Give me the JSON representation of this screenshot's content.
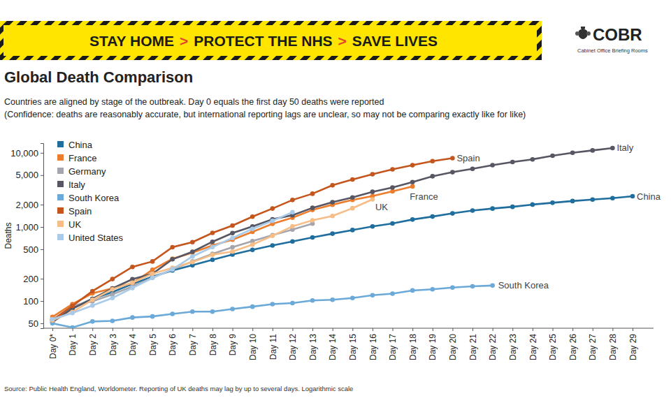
{
  "banner": {
    "items": [
      "STAY HOME",
      "PROTECT THE NHS",
      "SAVE LIVES"
    ],
    "separator": ">"
  },
  "logo": {
    "title": "COBR",
    "subtitle": "Cabinet Office Briefing Rooms"
  },
  "chart_data": {
    "type": "line",
    "title": "Global Death Comparison",
    "subtitle": [
      "Countries are aligned by stage of the outbreak. Day 0 equals the first day 50 deaths were reported",
      "(Confidence: deaths are reasonably accurate, but international reporting lags are unclear, so may not be comparing exactly like for like)"
    ],
    "source": "Source: Public Health England, Worldometer. Reporting of UK deaths may lag by up to several days. Logarithmic scale",
    "y_label": "Deaths",
    "log": "y",
    "grid": false,
    "legend": "top-left",
    "marker": "circle",
    "categories": [
      "Day 0*",
      "Day 1",
      "Day 2",
      "Day 3",
      "Day 4",
      "Day 5",
      "Day 6",
      "Day 7",
      "Day 8",
      "Day 9",
      "Day 10",
      "Day 11",
      "Day 12",
      "Day 13",
      "Day 14",
      "Day 15",
      "Day 16",
      "Day 17",
      "Day 18",
      "Day 19",
      "Day 20",
      "Day 21",
      "Day 22",
      "Day 23",
      "Day 24",
      "Day 25",
      "Day 26",
      "Day 27",
      "Day 28",
      "Day 29"
    ],
    "ylim": [
      43,
      13500
    ],
    "yticks": [
      50,
      100,
      200,
      500,
      {
        "value": 1000,
        "label": "1,000"
      },
      {
        "value": 2000,
        "label": "2,000"
      },
      {
        "value": 5000,
        "label": "5,000"
      },
      {
        "value": 10000,
        "label": "10,000"
      }
    ],
    "series": [
      {
        "name": "China",
        "color": "#1f6e9e",
        "values": [
          56,
          81,
          107,
          132,
          170,
          213,
          259,
          304,
          361,
          425,
          490,
          563,
          637,
          722,
          811,
          908,
          1016,
          1113,
          1259,
          1380,
          1523,
          1665,
          1770,
          1868,
          2004,
          2118,
          2236,
          2345,
          2442,
          2592
        ]
      },
      {
        "name": "France",
        "color": "#ec7d2d",
        "values": [
          61,
          91,
          127,
          148,
          175,
          264,
          372,
          450,
          562,
          674,
          860,
          1100,
          1331,
          1696,
          1995,
          2314,
          2606,
          3024,
          3523,
          null,
          null,
          null,
          null,
          null,
          null,
          null,
          null,
          null,
          null,
          null
        ]
      },
      {
        "name": "Germany",
        "color": "#a5a5ad",
        "values": [
          55,
          86,
          99,
          123,
          157,
          206,
          267,
          342,
          433,
          533,
          645,
          775,
          920,
          1107,
          null,
          null,
          null,
          null,
          null,
          null,
          null,
          null,
          null,
          null,
          null,
          null,
          null,
          null,
          null,
          null
        ]
      },
      {
        "name": "Italy",
        "color": "#575764",
        "values": [
          52,
          79,
          107,
          148,
          197,
          233,
          366,
          463,
          631,
          827,
          1016,
          1266,
          1441,
          1809,
          2158,
          2503,
          2978,
          3405,
          4032,
          4825,
          5476,
          6077,
          6820,
          7503,
          8165,
          9134,
          10023,
          10779,
          11591,
          null
        ]
      },
      {
        "name": "South Korea",
        "color": "#6aa9d8",
        "values": [
          50,
          44,
          53,
          54,
          60,
          62,
          67,
          72,
          72,
          78,
          84,
          91,
          94,
          102,
          104,
          110,
          120,
          126,
          139,
          144,
          152,
          158,
          162,
          null,
          null,
          null,
          null,
          null,
          null,
          null
        ]
      },
      {
        "name": "Spain",
        "color": "#c4561d",
        "values": [
          55,
          86,
          136,
          198,
          289,
          342,
          533,
          623,
          830,
          1043,
          1375,
          1772,
          2311,
          2808,
          3647,
          4365,
          5138,
          5982,
          6803,
          7716,
          8464,
          null,
          null,
          null,
          null,
          null,
          null,
          null,
          null,
          null
        ]
      },
      {
        "name": "UK",
        "color": "#f6bd86",
        "values": [
          55,
          71,
          104,
          144,
          177,
          233,
          281,
          335,
          422,
          465,
          578,
          759,
          1019,
          1228,
          1408,
          1789,
          2352,
          null,
          null,
          null,
          null,
          null,
          null,
          null,
          null,
          null,
          null,
          null,
          null,
          null
        ]
      },
      {
        "name": "United States",
        "color": "#a9cbe8",
        "values": [
          57,
          69,
          87,
          110,
          150,
          205,
          268,
          400,
          535,
          710,
          942,
          1209,
          1581,
          null,
          null,
          null,
          null,
          null,
          null,
          null,
          null,
          null,
          null,
          null,
          null,
          null,
          null,
          null,
          null,
          null
        ]
      }
    ],
    "annotations": [
      "Spain",
      "Italy",
      "China",
      "France",
      "UK",
      "South Korea"
    ]
  }
}
